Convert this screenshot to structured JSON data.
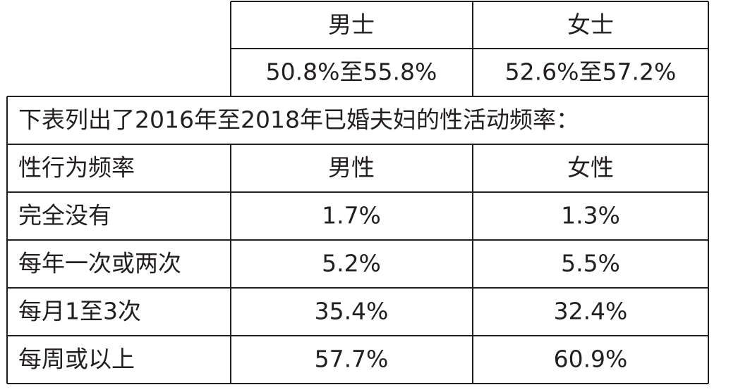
{
  "top_table": {
    "header": [
      "男士",
      "女士"
    ],
    "row": [
      "50.8%至55.8%",
      "52.6%至57.2%"
    ]
  },
  "note": "下表列出了2016年至2018年已婚夫妇的性活动频率：",
  "table": {
    "header": [
      "性行为频率",
      "男性",
      "女性"
    ],
    "rows": [
      [
        "完全没有",
        "1.7%",
        "1.3%"
      ],
      [
        "每年一次或两次",
        "5.2%",
        "5.5%"
      ],
      [
        "每月1至3次",
        "35.4%",
        "32.4%"
      ],
      [
        "每周或以上",
        "57.7%",
        "60.9%"
      ]
    ]
  }
}
